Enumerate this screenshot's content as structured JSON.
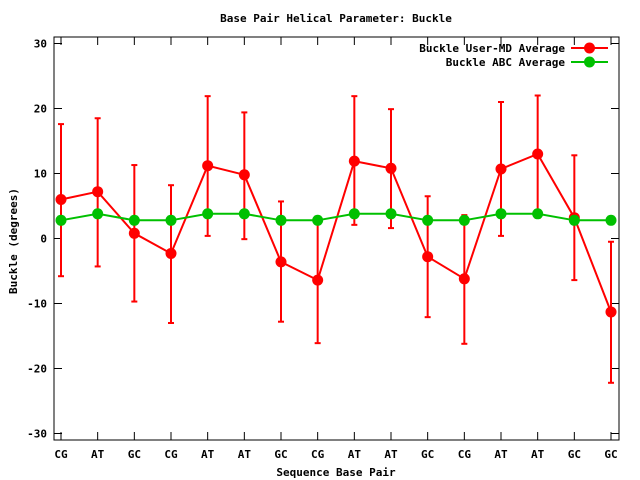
{
  "chart_data": {
    "type": "line",
    "title": "Base Pair Helical Parameter: Buckle",
    "xlabel": "Sequence Base Pair",
    "ylabel": "Buckle (degrees)",
    "ylim": [
      -31,
      31
    ],
    "yticks": [
      "30",
      "20",
      "10",
      "0",
      "-10",
      "-20",
      "-30"
    ],
    "ytick_values": [
      30,
      20,
      10,
      0,
      -10,
      -20,
      -30
    ],
    "categories": [
      "CG",
      "AT",
      "GC",
      "CG",
      "AT",
      "AT",
      "GC",
      "CG",
      "AT",
      "AT",
      "GC",
      "CG",
      "AT",
      "AT",
      "GC",
      "GC"
    ],
    "grid": false,
    "legend_position": "top-right",
    "series": [
      {
        "name": "Buckle User-MD Average",
        "color": "#ff0000",
        "values": [
          6.0,
          7.2,
          0.8,
          -2.3,
          11.2,
          9.8,
          -3.6,
          -6.4,
          11.9,
          10.8,
          -2.8,
          -6.2,
          10.7,
          13.0,
          3.2,
          -11.3
        ],
        "err_low": [
          -5.8,
          -4.3,
          -9.7,
          -13.0,
          0.4,
          -0.1,
          -12.8,
          -16.1,
          2.1,
          1.6,
          -12.1,
          -16.2,
          0.4,
          3.2,
          -6.4,
          -22.2
        ],
        "err_high": [
          17.6,
          18.5,
          11.3,
          8.2,
          21.9,
          19.4,
          5.7,
          2.8,
          21.9,
          19.9,
          6.5,
          3.6,
          21.0,
          22.0,
          12.8,
          -0.5
        ]
      },
      {
        "name": "Buckle ABC Average",
        "color": "#00c000",
        "values": [
          2.8,
          3.8,
          2.8,
          2.8,
          3.8,
          3.8,
          2.8,
          2.8,
          3.8,
          3.8,
          2.8,
          2.8,
          3.8,
          3.8,
          2.8,
          2.8
        ]
      }
    ]
  }
}
